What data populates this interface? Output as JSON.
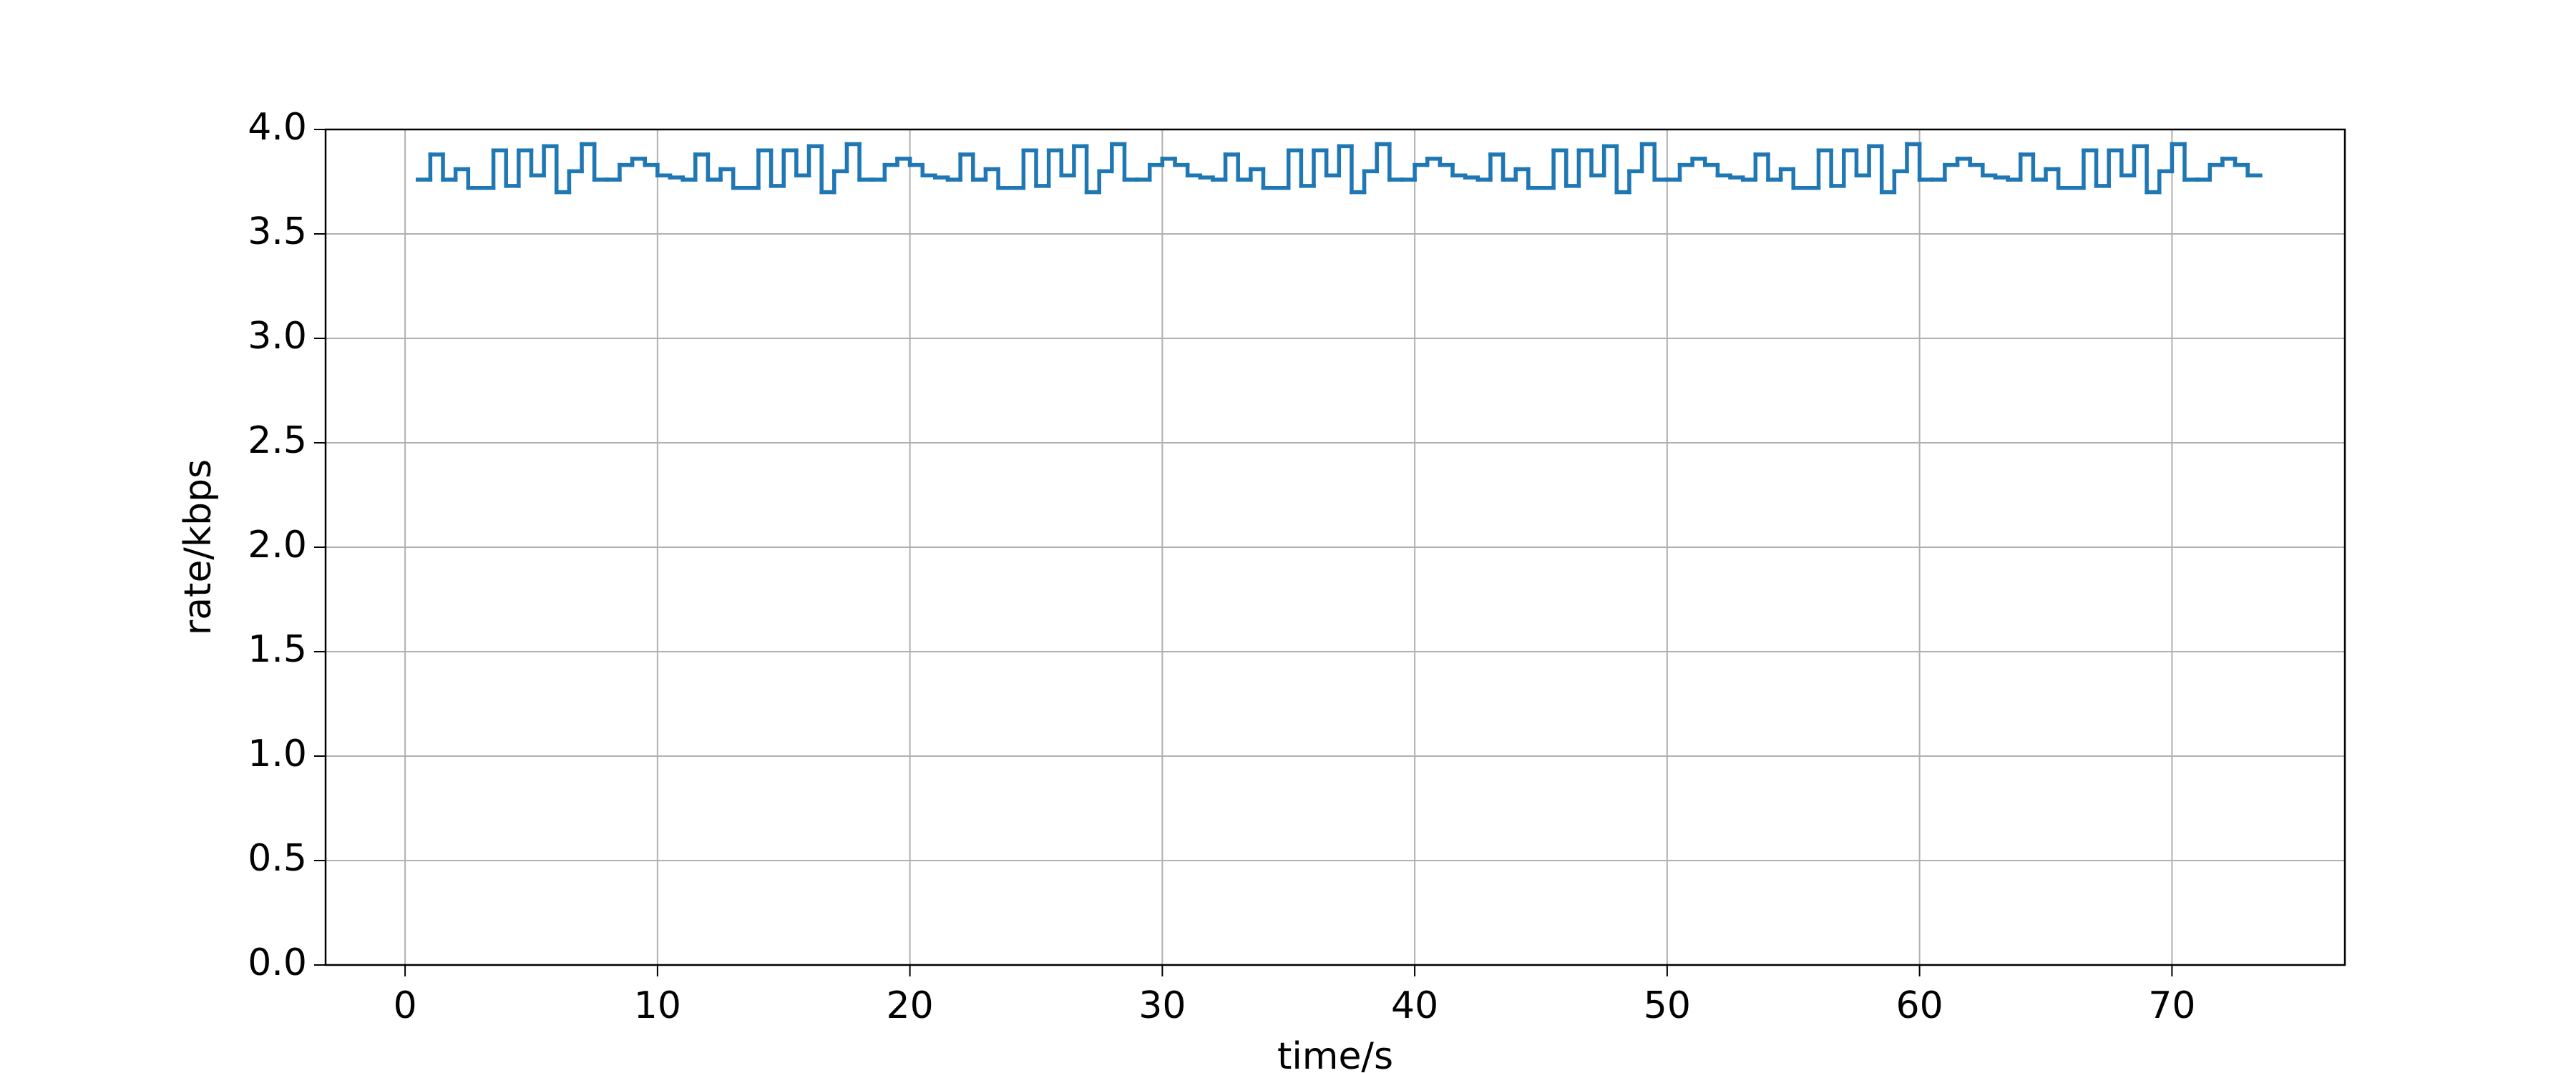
{
  "chart_data": {
    "type": "step",
    "xlabel": "time/s",
    "ylabel": "rate/kbps",
    "grid": true,
    "color": "#1f77b4",
    "xlim": [
      -3.15,
      76.85
    ],
    "ylim": [
      0,
      4
    ],
    "xticks": [
      0,
      10,
      20,
      30,
      40,
      50,
      60,
      70
    ],
    "yticks": [
      {
        "value": 0,
        "label": "0.0"
      },
      {
        "value": 0.5,
        "label": "0.5"
      },
      {
        "value": 1,
        "label": "1.0"
      },
      {
        "value": 1.5,
        "label": "1.5"
      },
      {
        "value": 2,
        "label": "2.0"
      },
      {
        "value": 2.5,
        "label": "2.5"
      },
      {
        "value": 3,
        "label": "3.0"
      },
      {
        "value": 3.5,
        "label": "3.5"
      },
      {
        "value": 4,
        "label": "4.0"
      }
    ],
    "x": [
      0.5,
      1,
      1.5,
      2,
      2.5,
      3,
      3.5,
      4,
      4.5,
      5,
      5.5,
      6,
      6.5,
      7,
      7.5,
      8,
      8.5,
      9,
      9.5,
      10,
      10.5,
      11,
      11.5,
      12,
      12.5,
      13,
      13.5,
      14,
      14.5,
      15,
      15.5,
      16,
      16.5,
      17,
      17.5,
      18,
      18.5,
      19,
      19.5,
      20,
      20.5,
      21,
      21.5,
      22,
      22.5,
      23,
      23.5,
      24,
      24.5,
      25,
      25.5,
      26,
      26.5,
      27,
      27.5,
      28,
      28.5,
      29,
      29.5,
      30,
      30.5,
      31,
      31.5,
      32,
      32.5,
      33,
      33.5,
      34,
      34.5,
      35,
      35.5,
      36,
      36.5,
      37,
      37.5,
      38,
      38.5,
      39,
      39.5,
      40,
      40.5,
      41,
      41.5,
      42,
      42.5,
      43,
      43.5,
      44,
      44.5,
      45,
      45.5,
      46,
      46.5,
      47,
      47.5,
      48,
      48.5,
      49,
      49.5,
      50,
      50.5,
      51,
      51.5,
      52,
      52.5,
      53,
      53.5,
      54,
      54.5,
      55,
      55.5,
      56,
      56.5,
      57,
      57.5,
      58,
      58.5,
      59,
      59.5,
      60,
      60.5,
      61,
      61.5,
      62,
      62.5,
      63,
      63.5,
      64,
      64.5,
      65,
      65.5,
      66,
      66.5,
      67,
      67.5,
      68,
      68.5,
      69,
      69.5,
      70,
      70.5,
      71,
      71.5,
      72,
      72.5,
      73
    ],
    "values": [
      3.76,
      3.88,
      3.76,
      3.81,
      3.72,
      3.72,
      3.9,
      3.73,
      3.9,
      3.78,
      3.92,
      3.7,
      3.8,
      3.93,
      3.76,
      3.76,
      3.83,
      3.86,
      3.83,
      3.78,
      3.77,
      3.76,
      3.88,
      3.76,
      3.81,
      3.72,
      3.72,
      3.9,
      3.73,
      3.9,
      3.78,
      3.92,
      3.7,
      3.8,
      3.93,
      3.76,
      3.76,
      3.83,
      3.86,
      3.83,
      3.78,
      3.77,
      3.76,
      3.88,
      3.76,
      3.81,
      3.72,
      3.72,
      3.9,
      3.73,
      3.9,
      3.78,
      3.92,
      3.7,
      3.8,
      3.93,
      3.76,
      3.76,
      3.83,
      3.86,
      3.83,
      3.78,
      3.77,
      3.76,
      3.88,
      3.76,
      3.81,
      3.72,
      3.72,
      3.9,
      3.73,
      3.9,
      3.78,
      3.92,
      3.7,
      3.8,
      3.93,
      3.76,
      3.76,
      3.83,
      3.86,
      3.83,
      3.78,
      3.77,
      3.76,
      3.88,
      3.76,
      3.81,
      3.72,
      3.72,
      3.9,
      3.73,
      3.9,
      3.78,
      3.92,
      3.7,
      3.8,
      3.93,
      3.76,
      3.76,
      3.83,
      3.86,
      3.83,
      3.78,
      3.77,
      3.76,
      3.88,
      3.76,
      3.81,
      3.72,
      3.72,
      3.9,
      3.73,
      3.9,
      3.78,
      3.92,
      3.7,
      3.8,
      3.93,
      3.76,
      3.76,
      3.83,
      3.86,
      3.83,
      3.78,
      3.77,
      3.76,
      3.88,
      3.76,
      3.81,
      3.72,
      3.72,
      3.9,
      3.73,
      3.9,
      3.78,
      3.92,
      3.7,
      3.8,
      3.93,
      3.76,
      3.76,
      3.83,
      3.86,
      3.83,
      3.78
    ]
  }
}
